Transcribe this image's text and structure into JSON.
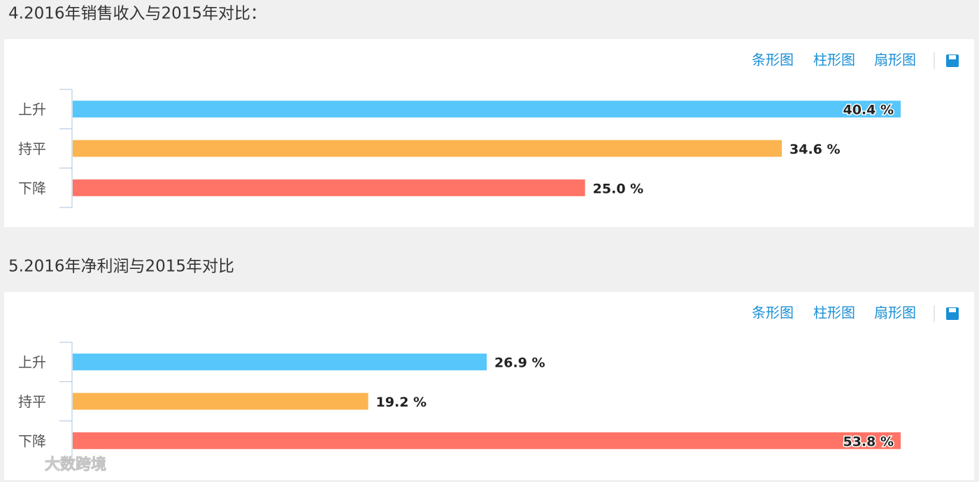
{
  "chart_data": [
    {
      "type": "bar",
      "orientation": "horizontal",
      "title": "4.2016年销售收入与2015年对比：",
      "toolbar": [
        "条形图",
        "柱形图",
        "扇形图"
      ],
      "categories": [
        "上升",
        "持平",
        "下降"
      ],
      "values": [
        40.4,
        34.6,
        25.0
      ],
      "value_labels": [
        "40.4 %",
        "34.6 %",
        "25.0 %"
      ],
      "colors": [
        "#57c6fb",
        "#fbb450",
        "#ff7466"
      ]
    },
    {
      "type": "bar",
      "orientation": "horizontal",
      "title": "5.2016年净利润与2015年对比",
      "toolbar": [
        "条形图",
        "柱形图",
        "扇形图"
      ],
      "categories": [
        "上升",
        "持平",
        "下降"
      ],
      "values": [
        26.9,
        19.2,
        53.8
      ],
      "value_labels": [
        "26.9 %",
        "19.2 %",
        "53.8 %"
      ],
      "colors": [
        "#57c6fb",
        "#fbb450",
        "#ff7466"
      ]
    }
  ],
  "watermark": "大数跨境"
}
